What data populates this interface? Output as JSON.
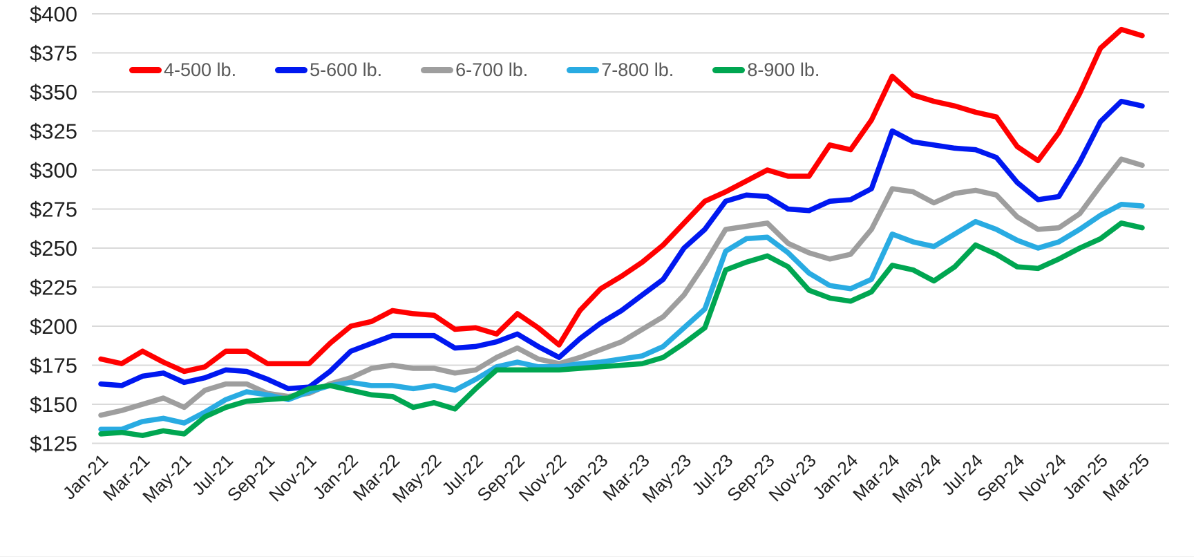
{
  "chart_data": {
    "type": "line",
    "title": "",
    "xlabel": "",
    "ylabel": "",
    "y_axis": {
      "min": 125,
      "max": 400,
      "step": 25,
      "prefix": "$"
    },
    "grid": true,
    "legend_position": "top-left-horizontal",
    "x_tick_every": 2,
    "x_labels": [
      "Jan-21",
      "Feb-21",
      "Mar-21",
      "Apr-21",
      "May-21",
      "Jun-21",
      "Jul-21",
      "Aug-21",
      "Sep-21",
      "Oct-21",
      "Nov-21",
      "Dec-21",
      "Jan-22",
      "Feb-22",
      "Mar-22",
      "Apr-22",
      "May-22",
      "Jun-22",
      "Jul-22",
      "Aug-22",
      "Sep-22",
      "Oct-22",
      "Nov-22",
      "Dec-22",
      "Jan-23",
      "Feb-23",
      "Mar-23",
      "Apr-23",
      "May-23",
      "Jun-23",
      "Jul-23",
      "Aug-23",
      "Sep-23",
      "Oct-23",
      "Nov-23",
      "Dec-23",
      "Jan-24",
      "Feb-24",
      "Mar-24",
      "Apr-24",
      "May-24",
      "Jun-24",
      "Jul-24",
      "Aug-24",
      "Sep-24",
      "Oct-24",
      "Nov-24",
      "Dec-24",
      "Jan-25",
      "Feb-25",
      "Mar-25"
    ],
    "series": [
      {
        "name": "4-500 lb.",
        "color": "#ff0000",
        "values": [
          179,
          176,
          184,
          177,
          171,
          174,
          184,
          184,
          176,
          176,
          176,
          189,
          200,
          203,
          210,
          208,
          207,
          198,
          199,
          195,
          208,
          199,
          188,
          210,
          224,
          232,
          241,
          252,
          266,
          280,
          286,
          293,
          300,
          296,
          296,
          316,
          313,
          332,
          360,
          348,
          344,
          341,
          337,
          334,
          315,
          306,
          324,
          349,
          378,
          390,
          386
        ]
      },
      {
        "name": "5-600 lb.",
        "color": "#0018f0",
        "values": [
          163,
          162,
          168,
          170,
          164,
          167,
          172,
          171,
          166,
          160,
          161,
          171,
          184,
          189,
          194,
          194,
          194,
          186,
          187,
          190,
          195,
          187,
          180,
          192,
          202,
          210,
          220,
          230,
          250,
          262,
          280,
          284,
          283,
          275,
          274,
          280,
          281,
          288,
          325,
          318,
          316,
          314,
          313,
          308,
          292,
          281,
          283,
          305,
          331,
          344,
          341
        ]
      },
      {
        "name": "6-700 lb.",
        "color": "#9e9e9e",
        "values": [
          143,
          146,
          150,
          154,
          148,
          159,
          163,
          163,
          157,
          155,
          157,
          163,
          167,
          173,
          175,
          173,
          173,
          170,
          172,
          180,
          186,
          179,
          176,
          180,
          185,
          190,
          198,
          206,
          220,
          240,
          262,
          264,
          266,
          253,
          247,
          243,
          246,
          262,
          288,
          286,
          279,
          285,
          287,
          284,
          270,
          262,
          263,
          272,
          290,
          307,
          303
        ]
      },
      {
        "name": "7-800 lb.",
        "color": "#29abe2",
        "values": [
          134,
          134,
          139,
          141,
          138,
          145,
          153,
          158,
          156,
          153,
          158,
          162,
          164,
          162,
          162,
          160,
          162,
          159,
          166,
          174,
          177,
          174,
          174,
          176,
          177,
          179,
          181,
          187,
          199,
          211,
          248,
          256,
          257,
          247,
          234,
          226,
          224,
          230,
          259,
          254,
          251,
          259,
          267,
          262,
          255,
          250,
          254,
          262,
          271,
          278,
          277
        ]
      },
      {
        "name": "8-900 lb.",
        "color": "#00a651",
        "values": [
          131,
          132,
          130,
          133,
          131,
          142,
          148,
          152,
          153,
          154,
          160,
          162,
          159,
          156,
          155,
          148,
          151,
          147,
          160,
          172,
          172,
          172,
          172,
          173,
          174,
          175,
          176,
          180,
          189,
          199,
          236,
          241,
          245,
          238,
          223,
          218,
          216,
          222,
          239,
          236,
          229,
          238,
          252,
          246,
          238,
          237,
          243,
          250,
          256,
          266,
          263
        ]
      }
    ]
  },
  "colors": {
    "background": "#ffffff",
    "gridline": "#d9d9d9",
    "axis_text": "#1f1f1f",
    "legend_text": "#595959"
  }
}
